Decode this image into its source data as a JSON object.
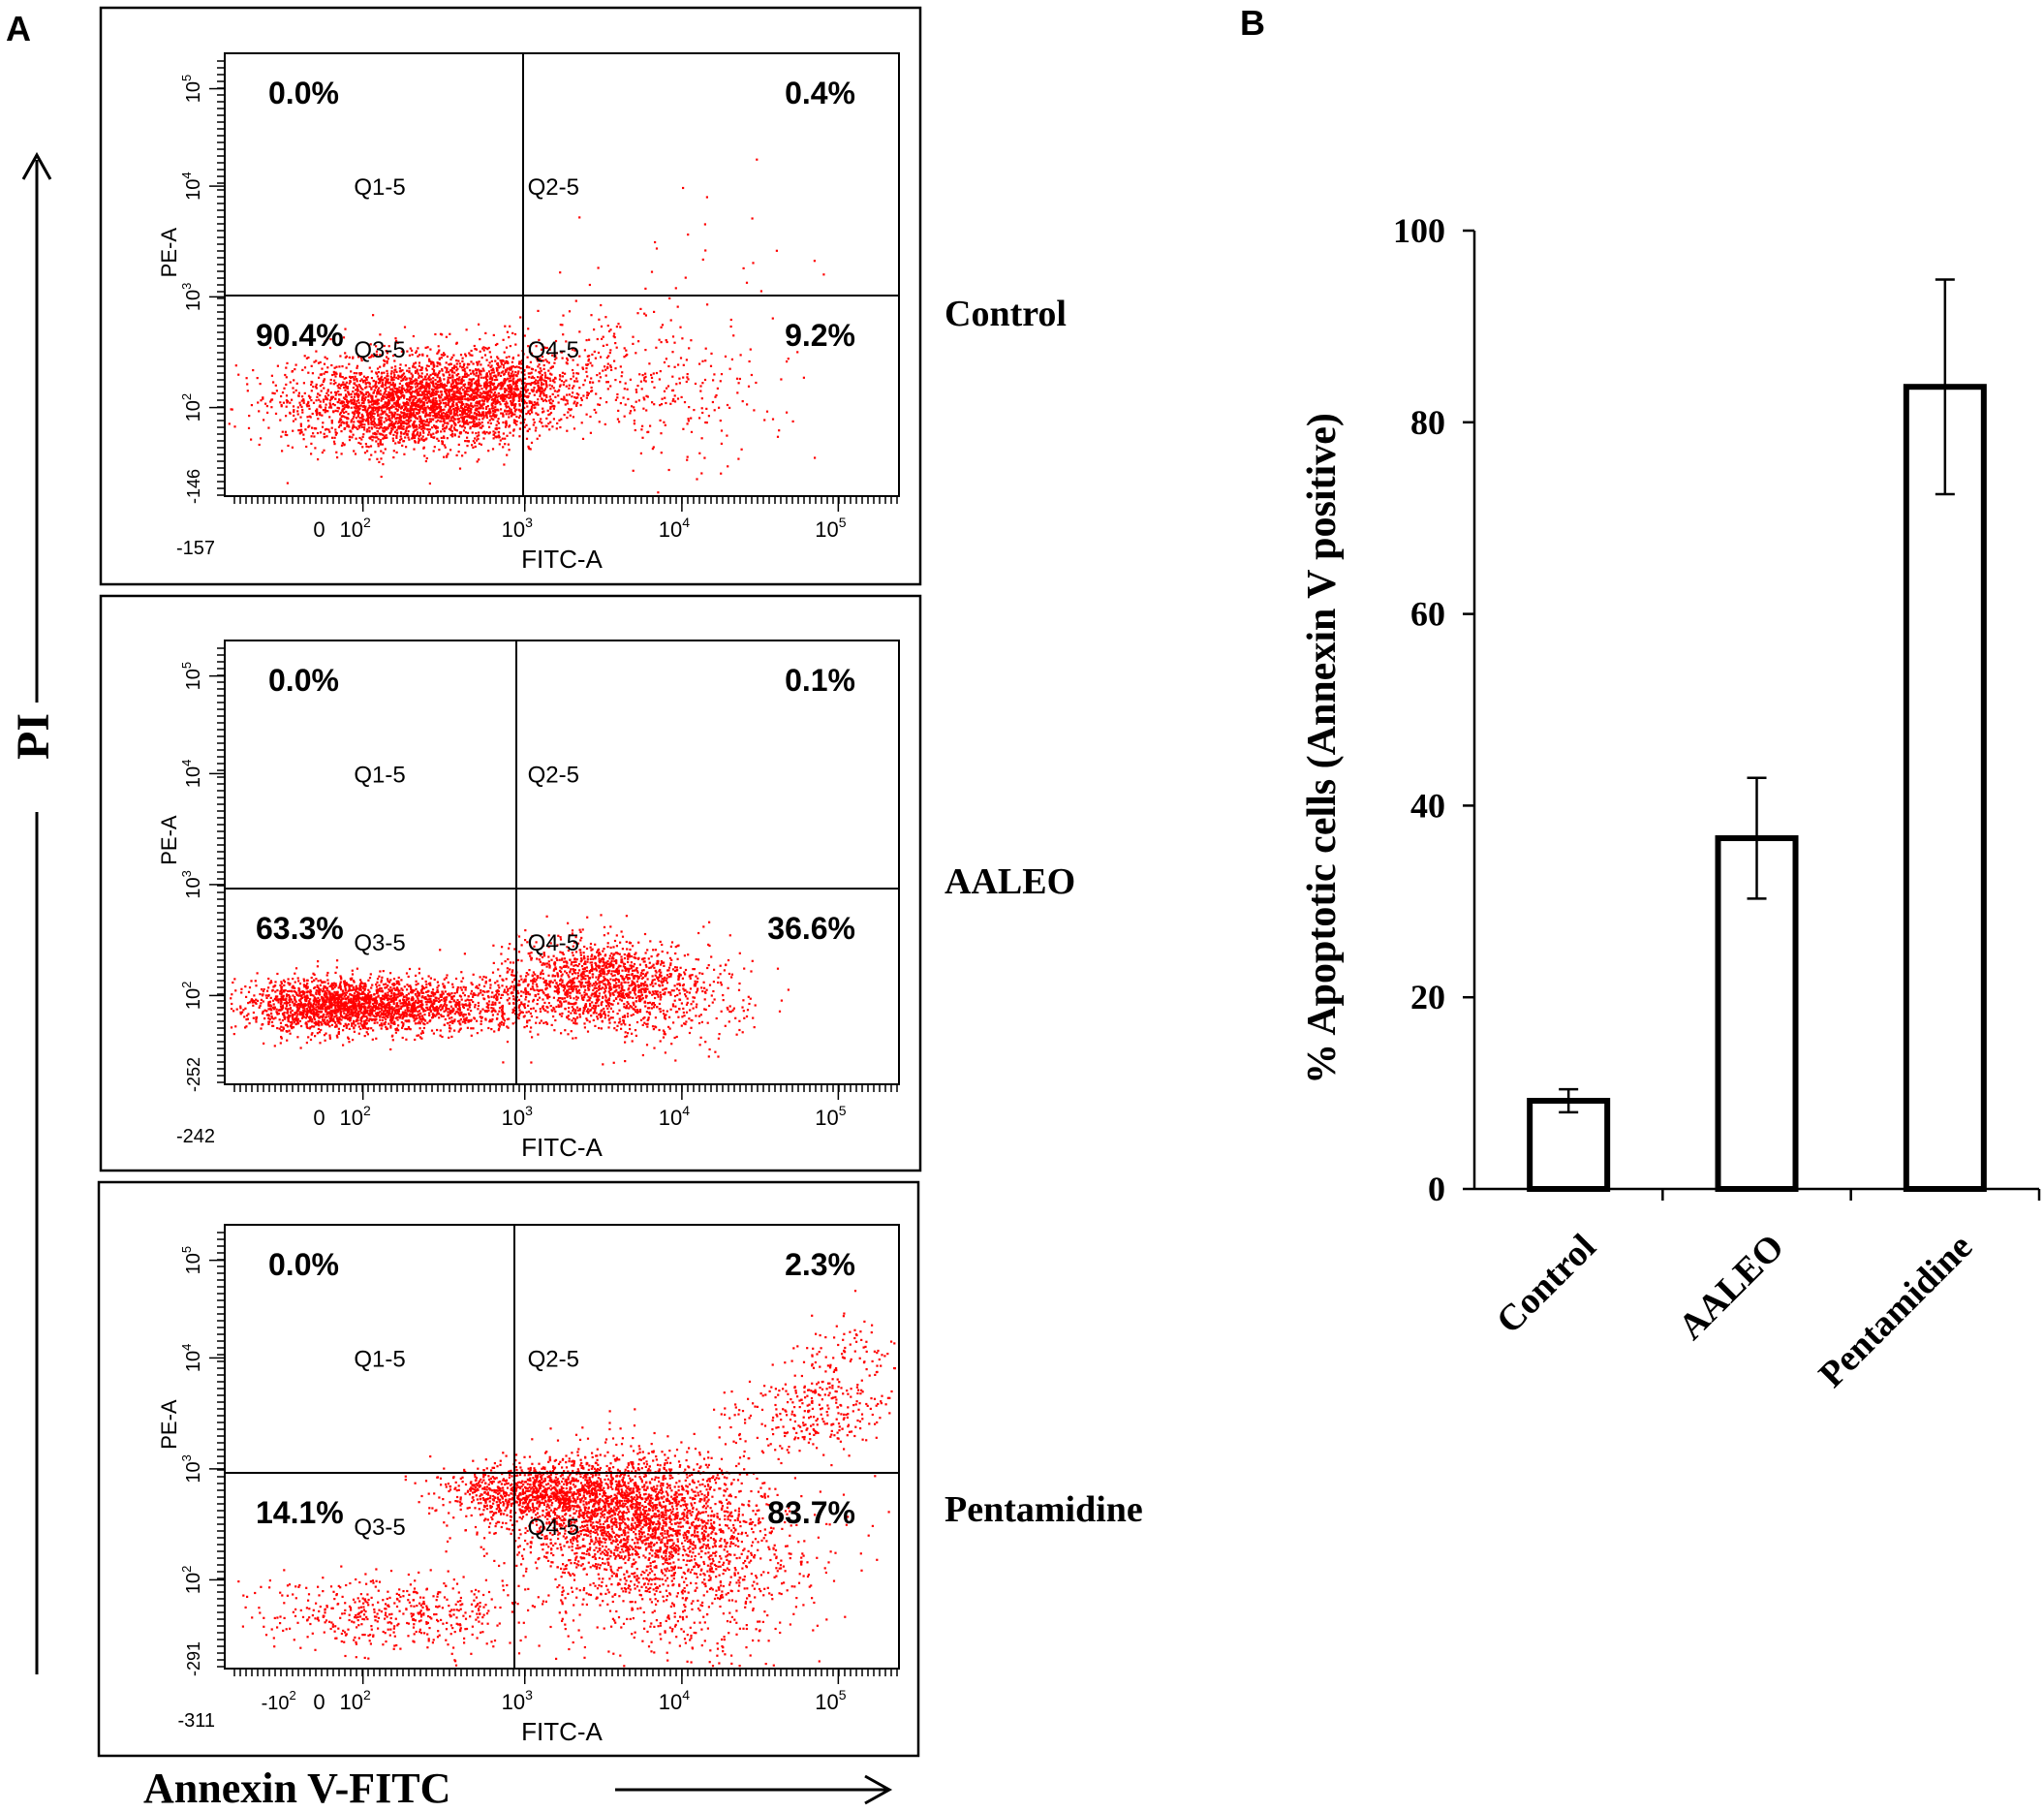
{
  "panel_labels": {
    "a": "A",
    "b": "B"
  },
  "colors": {
    "dots": "#ff0000",
    "ink": "#000000"
  },
  "axes_titles": {
    "y": "PI",
    "x": "Annexin V-FITC"
  },
  "flow_axis": {
    "x_label": "FITC-A",
    "y_label": "PE-A",
    "x_ticks": [
      "10",
      "10",
      "10",
      "10"
    ],
    "x_tick_exps": [
      "2",
      "3",
      "4",
      "5"
    ],
    "y_ticks": [
      "10",
      "10",
      "10",
      "10"
    ],
    "y_tick_exps": [
      "2",
      "3",
      "4",
      "5"
    ],
    "quadrant_names": [
      "Q1-5",
      "Q2-5",
      "Q3-5",
      "Q4-5"
    ]
  },
  "chart_data": [
    {
      "type": "scatter",
      "title": "Control",
      "xlabel": "FITC-A",
      "ylabel": "PE-A",
      "x_min_label": "-157",
      "y_min_label": "-146",
      "zero_label": "0",
      "quadrant_percent": {
        "q1": "0.0%",
        "q2": "0.4%",
        "q3": "90.4%",
        "q4": "9.2%"
      }
    },
    {
      "type": "scatter",
      "title": "AALEO",
      "xlabel": "FITC-A",
      "ylabel": "PE-A",
      "x_min_label": "-242",
      "y_min_label": "-252",
      "zero_label": "0",
      "quadrant_percent": {
        "q1": "0.0%",
        "q2": "0.1%",
        "q3": "63.3%",
        "q4": "36.6%"
      }
    },
    {
      "type": "scatter",
      "title": "Pentamidine",
      "xlabel": "FITC-A",
      "ylabel": "PE-A",
      "x_min_label": "-311",
      "y_min_label": "-291",
      "zero_label": "0",
      "neg_label": "-10",
      "quadrant_percent": {
        "q1": "0.0%",
        "q2": "2.3%",
        "q3": "14.1%",
        "q4": "83.7%"
      }
    },
    {
      "type": "bar",
      "title": "",
      "categories": [
        "Control",
        "AALEO",
        "Pentamidine"
      ],
      "values": [
        9.2,
        36.6,
        83.7
      ],
      "errors": [
        1.2,
        6.3,
        11.2
      ],
      "ylabel": "% Apoptotic cells (Annexin V positive)",
      "xlabel": "",
      "ylim": [
        0,
        100
      ],
      "yticks": [
        0,
        20,
        40,
        60,
        80,
        100
      ],
      "ytick_labels": [
        "0",
        "20",
        "40",
        "60",
        "80",
        "100"
      ]
    }
  ]
}
